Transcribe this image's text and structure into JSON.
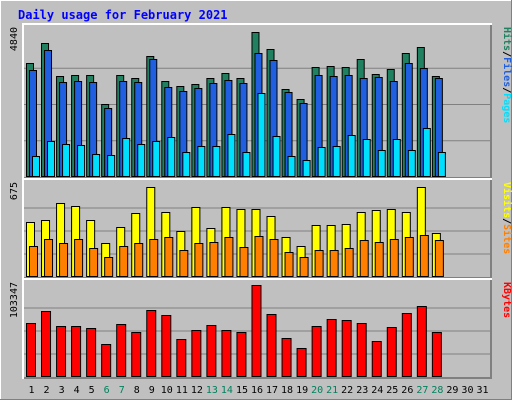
{
  "chart_data": [
    {
      "type": "bar",
      "title": "Daily usage for February 2021",
      "categories": [
        "1",
        "2",
        "3",
        "4",
        "5",
        "6",
        "7",
        "8",
        "9",
        "10",
        "11",
        "12",
        "13",
        "14",
        "15",
        "16",
        "17",
        "18",
        "19",
        "20",
        "21",
        "22",
        "23",
        "24",
        "25",
        "26",
        "27",
        "28",
        "29",
        "30",
        "31"
      ],
      "weekend_days": [
        "6",
        "7",
        "13",
        "14",
        "20",
        "21",
        "27",
        "28"
      ],
      "ylim": [
        0,
        4840
      ],
      "ytick_label": "4840",
      "ylabel_parts": [
        "Pages",
        "/",
        "Files",
        "/",
        "Hits"
      ],
      "series": [
        {
          "name": "Hits",
          "color": "#208060",
          "values": [
            3800,
            4470,
            3380,
            3410,
            3410,
            2420,
            3390,
            3300,
            4040,
            3190,
            3050,
            3100,
            3320,
            3460,
            3320,
            4840,
            4270,
            2950,
            2600,
            3680,
            3690,
            3680,
            3940,
            3440,
            3620,
            4130,
            4350,
            3380,
            0,
            0,
            0
          ]
        },
        {
          "name": "Files",
          "color": "#1f5fe0",
          "values": [
            3560,
            4240,
            3160,
            3210,
            3160,
            2300,
            3200,
            3160,
            3940,
            3020,
            2880,
            2960,
            3150,
            3240,
            3130,
            4140,
            3920,
            2840,
            2470,
            3390,
            3370,
            3410,
            3320,
            3330,
            3220,
            3810,
            3630,
            3300,
            0,
            0,
            0
          ]
        },
        {
          "name": "Pages",
          "color": "#00dffe",
          "values": [
            700,
            1200,
            1100,
            1080,
            780,
            740,
            1300,
            1110,
            1200,
            1340,
            830,
            1020,
            1030,
            1420,
            820,
            2790,
            1380,
            710,
            560,
            1010,
            1050,
            1400,
            1270,
            910,
            1280,
            900,
            1640,
            820,
            0,
            0,
            0
          ]
        }
      ]
    },
    {
      "type": "bar",
      "ylim": [
        0,
        675
      ],
      "ytick_label": "675",
      "ylabel_parts": [
        "Sites",
        "/",
        "Visits"
      ],
      "series": [
        {
          "name": "Visits",
          "color": "#ffff00",
          "values": [
            400,
            420,
            540,
            520,
            420,
            250,
            370,
            470,
            660,
            480,
            340,
            510,
            360,
            510,
            500,
            500,
            450,
            290,
            230,
            380,
            380,
            390,
            480,
            490,
            500,
            480,
            660,
            320,
            0,
            0,
            0
          ]
        },
        {
          "name": "Sites",
          "color": "#ff8000",
          "values": [
            230,
            280,
            250,
            280,
            210,
            150,
            230,
            250,
            280,
            290,
            200,
            250,
            260,
            290,
            220,
            300,
            280,
            180,
            150,
            200,
            200,
            210,
            270,
            260,
            280,
            290,
            310,
            270,
            0,
            0,
            0
          ]
        }
      ]
    },
    {
      "type": "bar",
      "ylim": [
        0,
        103347
      ],
      "ytick_label": "103347",
      "ylabel_parts": [
        "KBytes"
      ],
      "series": [
        {
          "name": "KBytes",
          "color": "#ff0000",
          "values": [
            61000,
            74000,
            57000,
            57000,
            55000,
            37000,
            59000,
            50000,
            75000,
            70000,
            43000,
            53000,
            58000,
            53000,
            51000,
            103347,
            71000,
            44000,
            33000,
            57000,
            65000,
            64000,
            61000,
            41000,
            56000,
            72000,
            80000,
            50000,
            0,
            0,
            0
          ]
        }
      ]
    }
  ]
}
